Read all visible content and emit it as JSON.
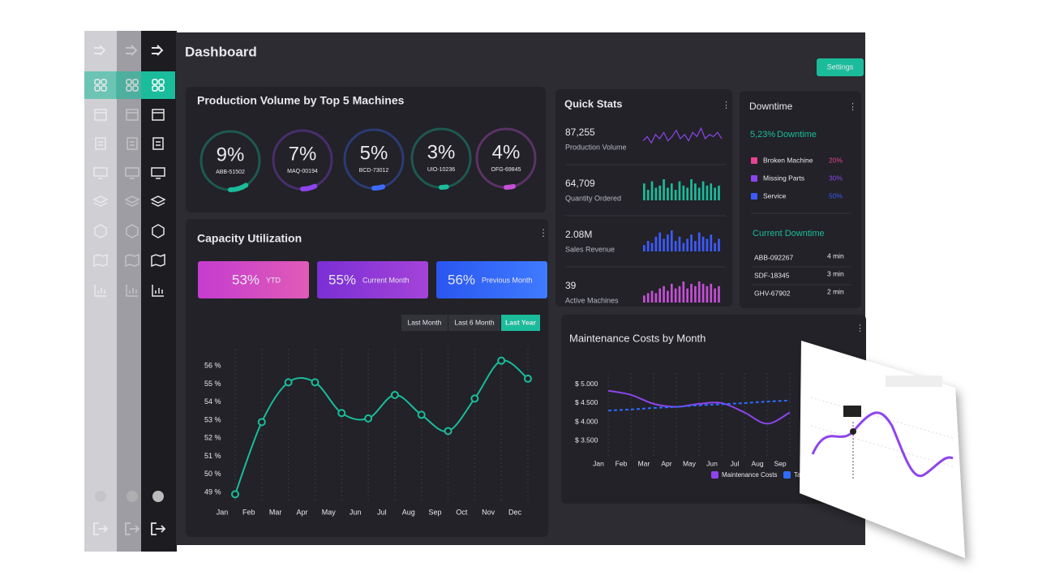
{
  "header": {
    "title": "Dashboard",
    "settings_button": "Settings"
  },
  "production": {
    "title": "Production Volume by Top 5 Machines",
    "gauges": [
      {
        "value": 9,
        "label": "9%",
        "machine": "ABB-51502",
        "color": "#1bbc9b"
      },
      {
        "value": 7,
        "label": "7%",
        "machine": "MAQ-00194",
        "color": "#8e44ec"
      },
      {
        "value": 5,
        "label": "5%",
        "machine": "BCD-73012",
        "color": "#3d6bff"
      },
      {
        "value": 3,
        "label": "3%",
        "machine": "UIO-10236",
        "color": "#1bbc9b"
      },
      {
        "value": 4,
        "label": "4%",
        "machine": "OFG-69845",
        "color": "#c54fd6"
      }
    ]
  },
  "capacity": {
    "title": "Capacity Utilization",
    "cards": [
      {
        "value": "53%",
        "label": "YTD",
        "colors": [
          "#c53ccf",
          "#e05bb8"
        ]
      },
      {
        "value": "55%",
        "label": "Current Month",
        "colors": [
          "#7a2fd6",
          "#a543d8"
        ]
      },
      {
        "value": "56%",
        "label": "Previous Month",
        "colors": [
          "#2a56f0",
          "#3f7bff"
        ]
      }
    ],
    "ranges": [
      "Last Month",
      "Last 6 Month",
      "Last Year"
    ],
    "active_range": 2,
    "chart": {
      "type": "line",
      "categories": [
        "Jan",
        "Feb",
        "Mar",
        "Apr",
        "May",
        "Jun",
        "Jul",
        "Aug",
        "Sep",
        "Oct",
        "Nov",
        "Dec"
      ],
      "values": [
        48.9,
        52.9,
        55.1,
        55.1,
        53.4,
        53.1,
        54.4,
        53.3,
        52.4,
        54.2,
        56.3,
        55.3
      ],
      "color": "#1bbc9b",
      "ylim": [
        48.6,
        56.6
      ],
      "yticks": [
        {
          "value": 49,
          "label": "49 %"
        },
        {
          "value": 50,
          "label": "50 %"
        },
        {
          "value": 51,
          "label": "51 %"
        },
        {
          "value": 52,
          "label": "52 %"
        },
        {
          "value": 53,
          "label": "53 %"
        },
        {
          "value": 54,
          "label": "54 %"
        },
        {
          "value": 55,
          "label": "55 %"
        },
        {
          "value": 56,
          "label": "56 %"
        }
      ],
      "grid": true
    }
  },
  "quick_stats": {
    "title": "Quick Stats",
    "items": [
      {
        "value": "87,255",
        "label": "Production Volume",
        "type": "line",
        "color": "#8e44ec",
        "trend": [
          4,
          6,
          3,
          7,
          5,
          8,
          4,
          6,
          9,
          5,
          7,
          4,
          8,
          6,
          10,
          5,
          7,
          6,
          8,
          5
        ]
      },
      {
        "value": "64,709",
        "label": "Quantity Ordered",
        "type": "bar",
        "color": "#1bbc9b",
        "trend": [
          8,
          5,
          9,
          6,
          7,
          10,
          6,
          8,
          5,
          9,
          7,
          6,
          10,
          8,
          6,
          9,
          7,
          8,
          6,
          7
        ]
      },
      {
        "value": "2.08M",
        "label": "Sales Revenue",
        "type": "bar",
        "color": "#3d5afe",
        "trend": [
          3,
          5,
          4,
          7,
          9,
          6,
          8,
          10,
          5,
          7,
          4,
          6,
          8,
          5,
          9,
          7,
          6,
          8,
          4,
          6
        ]
      },
      {
        "value": "39",
        "label": "Active Machines",
        "type": "bar",
        "color": "#c54fd6",
        "trend": [
          3,
          4,
          5,
          4,
          6,
          7,
          5,
          8,
          6,
          7,
          9,
          6,
          8,
          7,
          9,
          8,
          7,
          8,
          6,
          7
        ]
      }
    ]
  },
  "downtime": {
    "title": "Downtime",
    "total": "5,23%",
    "total_label": "Downtime",
    "reasons": [
      {
        "name": "Broken Machine",
        "value": "20%",
        "color": "#e84393"
      },
      {
        "name": "Missing Parts",
        "value": "30%",
        "color": "#8e44ec"
      },
      {
        "name": "Service",
        "value": "50%",
        "color": "#3d5afe"
      }
    ],
    "current_title": "Current Downtime",
    "current": [
      {
        "machine": "ABB-092267",
        "duration": "4 min"
      },
      {
        "machine": "SDF-18345",
        "duration": "3 min"
      },
      {
        "machine": "GHV-67902",
        "duration": "2 min"
      }
    ]
  },
  "maintenance": {
    "title": "Maintenance Costs by Month",
    "chart": {
      "type": "line",
      "categories": [
        "Jan",
        "Feb",
        "Mar",
        "Apr",
        "May",
        "Jun",
        "Jul",
        "Aug",
        "Sep"
      ],
      "ylim": [
        3200,
        5300
      ],
      "yticks": [
        {
          "value": 3500,
          "label": "$ 3.500"
        },
        {
          "value": 4000,
          "label": "$ 4.000"
        },
        {
          "value": 4500,
          "label": "$ 4.500"
        },
        {
          "value": 5000,
          "label": "$ 5.000"
        }
      ],
      "grid": true,
      "series": [
        {
          "name": "Maintenance Costs",
          "color": "#8e44ec",
          "dashed": false,
          "values": [
            4830,
            4720,
            4480,
            4400,
            4480,
            4500,
            4250,
            3950,
            4250
          ]
        },
        {
          "name": "Tar",
          "color": "#2f6bff",
          "dashed": true,
          "values": [
            4300,
            4330,
            4370,
            4400,
            4440,
            4470,
            4500,
            4540,
            4570
          ]
        }
      ]
    }
  }
}
